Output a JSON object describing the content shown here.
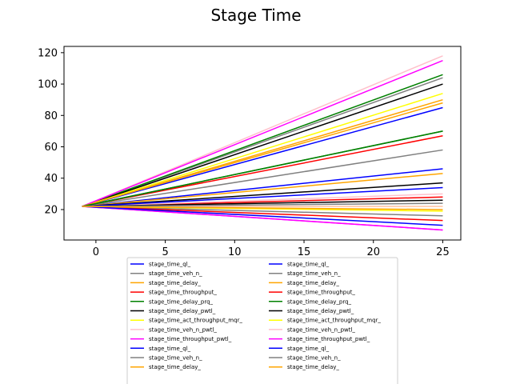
{
  "chart_data": {
    "type": "line",
    "title": "Stage Time",
    "xlabel": "",
    "ylabel": "",
    "xlim": [
      -2.3,
      26.3
    ],
    "ylim": [
      0.6,
      124.0
    ],
    "x_ticks": [
      0,
      5,
      10,
      15,
      20,
      25
    ],
    "y_ticks": [
      20,
      40,
      60,
      80,
      100,
      120
    ],
    "grid": false,
    "legend_placement": "below plot, two columns (cropped)",
    "x": [
      -1,
      25
    ],
    "series": [
      {
        "name": "stage_time_ql_",
        "color": "#0000ff",
        "values": [
          22,
          85
        ]
      },
      {
        "name": "stage_time_veh_n_",
        "color": "#808080",
        "values": [
          22,
          104
        ]
      },
      {
        "name": "stage_time_delay_",
        "color": "#ffa500",
        "values": [
          22,
          90
        ]
      },
      {
        "name": "stage_time_throughput_",
        "color": "#ff0000",
        "values": [
          22,
          67
        ]
      },
      {
        "name": "stage_time_delay_prq_",
        "color": "#008000",
        "values": [
          22,
          106
        ]
      },
      {
        "name": "stage_time_delay_pwtl_",
        "color": "#000000",
        "values": [
          22,
          100
        ]
      },
      {
        "name": "stage_time_act_throughput_mqr_",
        "color": "#ffff00",
        "values": [
          22,
          94
        ]
      },
      {
        "name": "stage_time_veh_n_pwtl_",
        "color": "#ffc0cb",
        "values": [
          22,
          118
        ]
      },
      {
        "name": "stage_time_throughput_pwtl_",
        "color": "#ff00ff",
        "values": [
          22,
          115
        ]
      },
      {
        "name": "stage_time_ql_",
        "color": "#0000ff",
        "values": [
          22,
          46
        ]
      },
      {
        "name": "stage_time_veh_n_",
        "color": "#808080",
        "values": [
          22,
          58
        ]
      },
      {
        "name": "stage_time_delay_",
        "color": "#ffa500",
        "values": [
          22,
          43
        ]
      },
      {
        "name": "stage_time_throughput_",
        "color": "#ff0000",
        "values": [
          22,
          28
        ]
      },
      {
        "name": "stage_time_delay_prq_",
        "color": "#008000",
        "values": [
          22,
          70
        ]
      },
      {
        "name": "stage_time_delay_pwtl_",
        "color": "#000000",
        "values": [
          22,
          37
        ]
      },
      {
        "name": "stage_time_act_throughput_mqr_",
        "color": "#ffff00",
        "values": [
          22,
          22
        ]
      },
      {
        "name": "stage_time_veh_n_pwtl_",
        "color": "#ffc0cb",
        "values": [
          22,
          30
        ]
      },
      {
        "name": "stage_time_throughput_pwtl_",
        "color": "#ff00ff",
        "values": [
          22,
          7
        ]
      },
      {
        "name": "stage_time_ql_",
        "color": "#0000ff",
        "values": [
          22,
          34
        ]
      },
      {
        "name": "stage_time_veh_n_",
        "color": "#808080",
        "values": [
          22,
          16
        ]
      },
      {
        "name": "stage_time_delay_",
        "color": "#ffa500",
        "values": [
          22,
          88
        ]
      },
      {
        "name": "stage_time_throughput_",
        "color": "#ff0000",
        "values": [
          22,
          13
        ]
      },
      {
        "name": "stage_time_delay_prq_",
        "color": "#008000",
        "values": [
          22,
          70
        ]
      },
      {
        "name": "stage_time_delay_pwtl_",
        "color": "#000000",
        "values": [
          22,
          26
        ]
      },
      {
        "name": "stage_time_act_throughput_mqr_",
        "color": "#ffff00",
        "values": [
          22,
          19
        ]
      },
      {
        "name": "stage_time_veh_n_pwtl_",
        "color": "#ffc0cb",
        "values": [
          22,
          22
        ]
      },
      {
        "name": "stage_time_throughput_pwtl_",
        "color": "#ff00ff",
        "values": [
          22,
          7
        ]
      },
      {
        "name": "stage_time_ql_",
        "color": "#0000ff",
        "values": [
          22,
          10
        ]
      },
      {
        "name": "stage_time_veh_n_",
        "color": "#808080",
        "values": [
          22,
          24
        ]
      },
      {
        "name": "stage_time_delay_",
        "color": "#ffa500",
        "values": [
          22,
          20
        ]
      }
    ],
    "legend_visible_entries": [
      {
        "name": "stage_time_ql_",
        "color": "#0000ff"
      },
      {
        "name": "stage_time_veh_n_",
        "color": "#808080"
      },
      {
        "name": "stage_time_delay_",
        "color": "#ffa500"
      },
      {
        "name": "stage_time_throughput_",
        "color": "#ff0000"
      },
      {
        "name": "stage_time_delay_prq_",
        "color": "#008000"
      },
      {
        "name": "stage_time_delay_pwtl_",
        "color": "#000000"
      },
      {
        "name": "stage_time_act_throughput_mqr_",
        "color": "#ffff00"
      },
      {
        "name": "stage_time_veh_n_pwtl_",
        "color": "#ffc0cb"
      },
      {
        "name": "stage_time_throughput_pwtl_",
        "color": "#ff00ff"
      },
      {
        "name": "stage_time_ql_",
        "color": "#0000ff"
      },
      {
        "name": "stage_time_veh_n_",
        "color": "#808080"
      },
      {
        "name": "stage_time_delay_",
        "color": "#ffa500"
      }
    ]
  }
}
